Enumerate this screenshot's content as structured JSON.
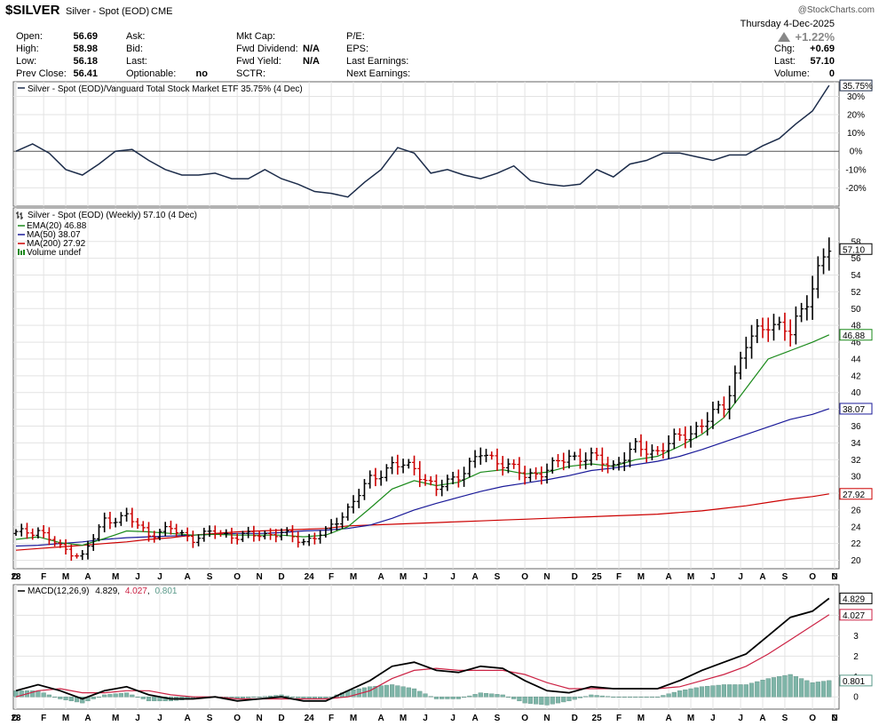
{
  "header": {
    "symbol": "$SILVER",
    "name": "Silver - Spot (EOD)",
    "exchange": "CME",
    "watermark": "@StockCharts.com",
    "date": "Thursday  4-Dec-2025",
    "pct_change": "+1.22%",
    "stats_left": [
      {
        "label": "Open:",
        "value": "56.69"
      },
      {
        "label": "High:",
        "value": "58.98"
      },
      {
        "label": "Low:",
        "value": "56.18"
      },
      {
        "label": "Prev Close:",
        "value": "56.41"
      }
    ],
    "stats_mid1": [
      {
        "label": "Ask:",
        "value": ""
      },
      {
        "label": "Bid:",
        "value": ""
      },
      {
        "label": "Last:",
        "value": ""
      },
      {
        "label": "Optionable:",
        "value": "no"
      }
    ],
    "stats_mid2": [
      {
        "label": "Mkt Cap:",
        "value": ""
      },
      {
        "label": "Fwd Dividend:",
        "value": "N/A"
      },
      {
        "label": "Fwd Yield:",
        "value": "N/A"
      },
      {
        "label": "SCTR:",
        "value": ""
      }
    ],
    "stats_mid3": [
      {
        "label": "P/E:",
        "value": ""
      },
      {
        "label": "EPS:",
        "value": ""
      },
      {
        "label": "Last Earnings:",
        "value": ""
      },
      {
        "label": "Next Earnings:",
        "value": ""
      }
    ],
    "stats_right": [
      {
        "label": "Chg:",
        "value": "+0.69"
      },
      {
        "label": "Last:",
        "value": "57.10"
      },
      {
        "label": "Volume:",
        "value": "0"
      }
    ]
  },
  "colors": {
    "up": "#000000",
    "down": "#cc0000",
    "ema20": "#1a8a1a",
    "ma50": "#1a1a99",
    "ma200": "#cc0000",
    "macd_line": "#000000",
    "signal_line": "#cc2244",
    "hist": "#7fb5a8",
    "ratio_line": "#1c2c4a",
    "grid": "#e3e3e3",
    "zero": "#555555"
  },
  "chart_data": [
    {
      "type": "line",
      "legend": "Silver - Spot (EOD)/Vanguard Total Stock Market ETF 35.75% (4 Dec)",
      "last_label": "35.75%",
      "ylim": [
        -30,
        38
      ],
      "yticks": [
        -20,
        -10,
        0,
        10,
        20,
        30
      ],
      "ytick_labels": [
        "-20%",
        "-10%",
        "0%",
        "10%",
        "20%",
        "30%"
      ],
      "x": [
        0,
        3,
        6,
        9,
        12,
        15,
        18,
        21,
        24,
        27,
        30,
        33,
        36,
        39,
        42,
        45,
        48,
        51,
        54,
        57,
        60,
        63,
        66,
        69,
        72,
        75,
        78,
        81,
        84,
        87,
        90,
        93,
        96,
        99,
        102,
        105,
        108,
        111,
        114,
        117,
        120,
        123,
        126,
        129,
        132,
        135,
        138,
        141,
        144,
        147
      ],
      "values": [
        0,
        4,
        -1,
        -10,
        -13,
        -7,
        0,
        1,
        -5,
        -10,
        -13,
        -13,
        -12,
        -15,
        -15,
        -10,
        -15,
        -18,
        -22,
        -23,
        -25,
        -17,
        -10,
        2,
        -1,
        -12,
        -10,
        -13,
        -15,
        -12,
        -8,
        -16,
        -18,
        -19,
        -18,
        -10,
        -14,
        -7,
        -5,
        -1,
        -1,
        -3,
        -5,
        -2,
        -2,
        3,
        7,
        15,
        22,
        36
      ]
    },
    {
      "type": "candlestick",
      "legend": "Silver - Spot (EOD) (Weekly) 57.10 (4 Dec)",
      "last_label": "57.10",
      "ylim": [
        19,
        62
      ],
      "yticks": [
        20,
        22,
        24,
        26,
        28,
        30,
        32,
        34,
        36,
        38,
        40,
        42,
        44,
        46,
        48,
        50,
        52,
        54,
        56,
        58
      ],
      "ytick_labels": [
        "20",
        "22",
        "24",
        "26",
        "28",
        "30",
        "32",
        "34",
        "36",
        "38",
        "40",
        "42",
        "44",
        "46",
        "48",
        "50",
        "52",
        "54",
        "56",
        "58"
      ],
      "x_weeks": [
        0,
        4,
        8,
        12,
        16,
        20,
        24,
        28,
        32,
        36,
        40,
        44,
        48,
        52,
        56,
        60,
        64,
        68,
        72,
        76,
        80,
        84,
        88,
        92,
        96,
        100,
        104,
        108,
        112,
        116,
        120,
        124,
        128,
        132,
        136,
        140,
        144,
        147
      ],
      "close": [
        23.2,
        23.6,
        21.5,
        20.5,
        24.8,
        25.2,
        23.1,
        23.7,
        22.6,
        23.4,
        22.8,
        23.1,
        23.2,
        22.3,
        23.3,
        26.2,
        29.6,
        31.4,
        31.0,
        28.4,
        30.2,
        32.6,
        31.7,
        30.0,
        30.8,
        32.4,
        32.2,
        31.3,
        33.4,
        33.0,
        34.7,
        36.1,
        38.6,
        45.6,
        48.6,
        46.9,
        52.9,
        57.1
      ],
      "ema20_label": "EMA(20) 46.88",
      "ema20_last": "46.88",
      "ema20": [
        22.5,
        22.8,
        22.1,
        21.8,
        22.6,
        23.5,
        23.4,
        23.2,
        23.0,
        23.1,
        23.0,
        23.0,
        23.0,
        22.8,
        23.0,
        24.0,
        26.2,
        28.5,
        29.5,
        28.9,
        29.3,
        30.5,
        30.8,
        30.3,
        30.5,
        31.2,
        31.5,
        31.2,
        32.0,
        32.4,
        33.6,
        35.0,
        37.0,
        40.5,
        44.0,
        45.0,
        46.0,
        46.88
      ],
      "ma50_label": "MA(50) 38.07",
      "ma50_last": "38.07",
      "ma50": [
        21.7,
        21.8,
        22.0,
        22.2,
        22.5,
        22.7,
        22.8,
        22.9,
        23.0,
        23.1,
        23.2,
        23.2,
        23.3,
        23.5,
        23.6,
        23.8,
        24.2,
        25.0,
        26.0,
        26.8,
        27.5,
        28.2,
        28.8,
        29.2,
        29.6,
        30.1,
        30.7,
        31.0,
        31.4,
        31.8,
        32.4,
        33.2,
        34.1,
        35.0,
        35.9,
        36.8,
        37.4,
        38.07
      ],
      "ma200_label": "MA(200) 27.92",
      "ma200_last": "27.92",
      "ma200": [
        21.2,
        21.4,
        21.6,
        21.8,
        22.0,
        22.2,
        22.5,
        22.7,
        23.0,
        23.2,
        23.4,
        23.5,
        23.6,
        23.7,
        23.8,
        24.1,
        24.2,
        24.3,
        24.4,
        24.5,
        24.6,
        24.7,
        24.8,
        24.9,
        25.0,
        25.1,
        25.2,
        25.3,
        25.4,
        25.5,
        25.7,
        25.9,
        26.2,
        26.5,
        26.9,
        27.3,
        27.6,
        27.92
      ],
      "volume_label": "Volume undef"
    },
    {
      "type": "macd",
      "legend_prefix": "MACD(12,26,9)",
      "macd_value": "4.829",
      "signal_value": "4.027",
      "hist_value": "0.801",
      "ylim": [
        -0.6,
        5.5
      ],
      "yticks": [
        0,
        1,
        2,
        3,
        4
      ],
      "ytick_labels": [
        "0",
        "1",
        "2",
        "3",
        "4"
      ],
      "x": [
        0,
        4,
        8,
        12,
        16,
        20,
        24,
        28,
        32,
        36,
        40,
        44,
        48,
        52,
        56,
        60,
        64,
        68,
        72,
        76,
        80,
        84,
        88,
        92,
        96,
        100,
        104,
        108,
        112,
        116,
        120,
        124,
        128,
        132,
        136,
        140,
        144,
        147
      ],
      "macd": [
        0.3,
        0.6,
        0.3,
        -0.1,
        0.3,
        0.5,
        0.1,
        -0.1,
        -0.1,
        0.0,
        -0.2,
        -0.1,
        0.0,
        -0.2,
        -0.2,
        0.3,
        0.8,
        1.5,
        1.7,
        1.3,
        1.2,
        1.5,
        1.4,
        0.8,
        0.3,
        0.2,
        0.5,
        0.4,
        0.4,
        0.4,
        0.8,
        1.3,
        1.7,
        2.1,
        3.0,
        3.9,
        4.2,
        4.829
      ],
      "signal": [
        0.0,
        0.3,
        0.4,
        0.2,
        0.2,
        0.3,
        0.3,
        0.1,
        0.0,
        0.0,
        -0.1,
        -0.1,
        -0.1,
        -0.1,
        -0.1,
        0.0,
        0.3,
        0.9,
        1.3,
        1.4,
        1.3,
        1.3,
        1.3,
        1.1,
        0.7,
        0.4,
        0.4,
        0.4,
        0.4,
        0.4,
        0.5,
        0.8,
        1.1,
        1.5,
        2.1,
        2.8,
        3.5,
        4.027
      ],
      "hist": [
        0.3,
        0.3,
        -0.1,
        -0.3,
        0.1,
        0.2,
        -0.2,
        -0.2,
        -0.1,
        0.0,
        -0.1,
        0.0,
        0.1,
        -0.1,
        -0.1,
        0.3,
        0.5,
        0.6,
        0.4,
        -0.1,
        -0.1,
        0.2,
        0.1,
        -0.3,
        -0.4,
        -0.2,
        0.1,
        0.0,
        0.0,
        0.0,
        0.3,
        0.5,
        0.6,
        0.6,
        0.9,
        1.1,
        0.7,
        0.801
      ]
    }
  ],
  "x_axis": {
    "labels": [
      "D",
      "23",
      "F",
      "M",
      "A",
      "M",
      "J",
      "J",
      "A",
      "S",
      "O",
      "N",
      "D",
      "24",
      "F",
      "M",
      "A",
      "M",
      "J",
      "J",
      "A",
      "S",
      "O",
      "N",
      "D",
      "25",
      "F",
      "M",
      "A",
      "M",
      "J",
      "J",
      "A",
      "S",
      "O",
      "N",
      "D"
    ],
    "week_positions": [
      -4,
      0,
      5,
      9,
      13,
      18,
      22,
      26,
      31,
      35,
      40,
      44,
      48,
      53,
      57,
      61,
      66,
      70,
      74,
      79,
      83,
      87,
      92,
      96,
      101,
      105,
      109,
      113,
      118,
      122,
      126,
      131,
      135,
      139,
      144,
      148,
      152
    ]
  }
}
